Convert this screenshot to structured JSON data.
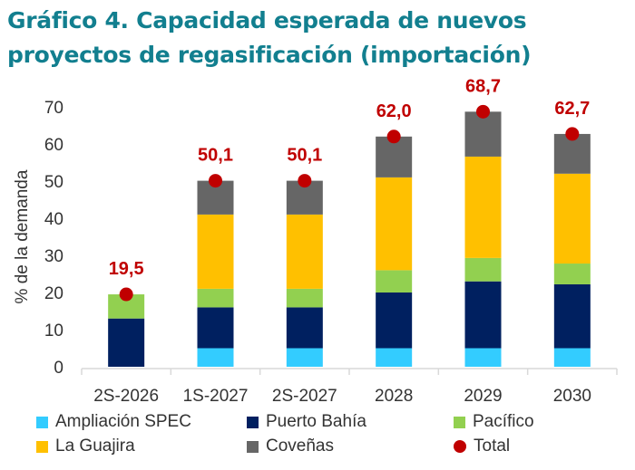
{
  "chart_data": {
    "type": "bar",
    "stacked": true,
    "title": "Gráfico 4. Capacidad esperada de nuevos proyectos de regasificación (importación)",
    "ylabel": "% de la demanda",
    "ylim": [
      0,
      70
    ],
    "yticks": [
      0,
      10,
      20,
      30,
      40,
      50,
      60,
      70
    ],
    "grid": false,
    "legend_placement": "bottom",
    "categories": [
      "2S-2026",
      "1S-2027",
      "2S-2027",
      "2028",
      "2029",
      "2030"
    ],
    "series": [
      {
        "name": "Ampliación SPEC",
        "color": "#33ccff",
        "values": [
          0,
          5,
          5,
          5,
          5,
          5
        ]
      },
      {
        "name": "Puerto Bahía",
        "color": "#002060",
        "values": [
          13,
          11,
          11,
          15,
          18,
          17.2
        ]
      },
      {
        "name": "Pacífico",
        "color": "#92d050",
        "values": [
          6.5,
          5,
          5,
          6,
          6.3,
          5.6
        ]
      },
      {
        "name": "La Guajira",
        "color": "#ffc000",
        "values": [
          0,
          20,
          20,
          25,
          27.3,
          24.2
        ]
      },
      {
        "name": "Coveñas",
        "color": "#666666",
        "values": [
          0,
          9.1,
          9.1,
          11,
          12.1,
          10.7
        ]
      }
    ],
    "total": {
      "name": "Total",
      "color": "#c00000",
      "values": [
        19.5,
        50.1,
        50.1,
        62.0,
        68.7,
        62.7
      ],
      "labels": [
        "19,5",
        "50,1",
        "50,1",
        "62,0",
        "68,7",
        "62,7"
      ]
    }
  }
}
